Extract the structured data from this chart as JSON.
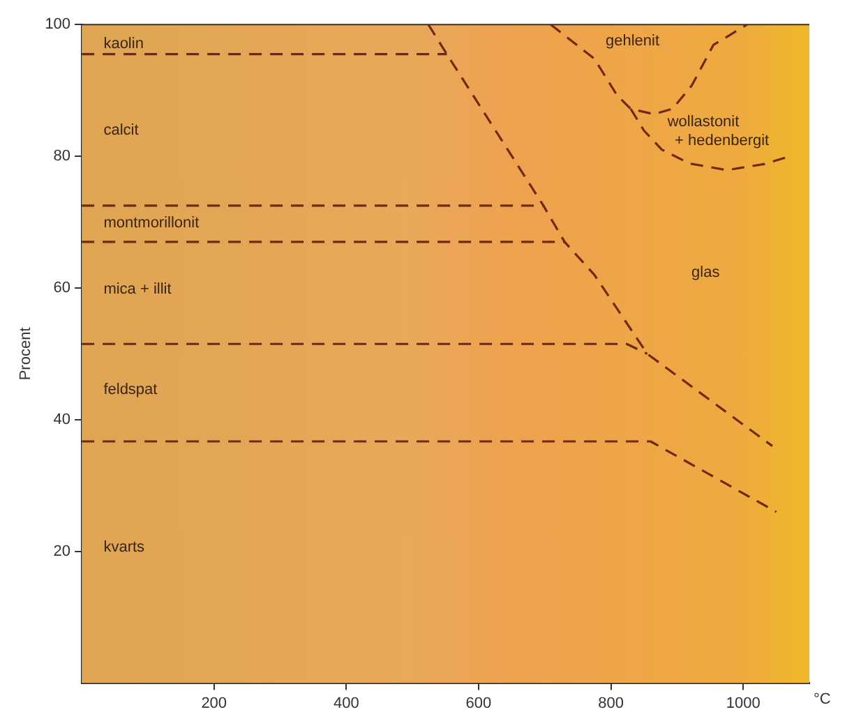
{
  "chart_data": {
    "type": "line",
    "xlabel": "°C",
    "ylabel": "Procent",
    "xlim": [
      0,
      1100
    ],
    "ylim": [
      0,
      100
    ],
    "xticks": [
      200,
      400,
      600,
      800,
      1000
    ],
    "yticks": [
      20,
      40,
      60,
      80,
      100
    ],
    "grid": false,
    "legend": false,
    "marker": "none",
    "line_style": "dashed",
    "series": [
      {
        "color": "#6e2a12",
        "x": [
          0,
          552
        ],
        "values": [
          95.5,
          95.5
        ]
      },
      {
        "color": "#6e2a12",
        "x": [
          0,
          698
        ],
        "values": [
          72.5,
          72.5
        ]
      },
      {
        "color": "#6e2a12",
        "x": [
          0,
          730
        ],
        "values": [
          67,
          67
        ]
      },
      {
        "color": "#6e2a12",
        "x": [
          0,
          824,
          855
        ],
        "values": [
          51.5,
          51.5,
          50
        ]
      },
      {
        "color": "#6e2a12",
        "x": [
          0,
          860,
          1050
        ],
        "values": [
          36.7,
          36.7,
          26
        ]
      },
      {
        "color": "#6e2a12",
        "x": [
          524,
          552,
          698,
          730,
          775,
          855,
          1044
        ],
        "values": [
          100,
          95.5,
          72.5,
          67,
          62,
          50,
          36
        ]
      },
      {
        "color": "#6e2a12",
        "x": [
          709,
          775,
          809,
          830,
          865,
          893,
          922,
          955,
          1006
        ],
        "values": [
          100,
          94.8,
          89.3,
          87.2,
          86.4,
          87.2,
          90.7,
          96.9,
          100
        ]
      },
      {
        "color": "#6e2a12",
        "x": [
          830,
          850,
          877,
          919,
          975,
          1031,
          1064
        ],
        "values": [
          87.2,
          83.9,
          81,
          78.9,
          77.9,
          78.8,
          79.8
        ]
      }
    ],
    "annotations": [
      "kaolin",
      "calcit",
      "montmorillonit",
      "mica + illit",
      "feldspat",
      "kvarts",
      "gehlenit",
      "wollastonit",
      "+ hedenbergit",
      "glas"
    ]
  }
}
